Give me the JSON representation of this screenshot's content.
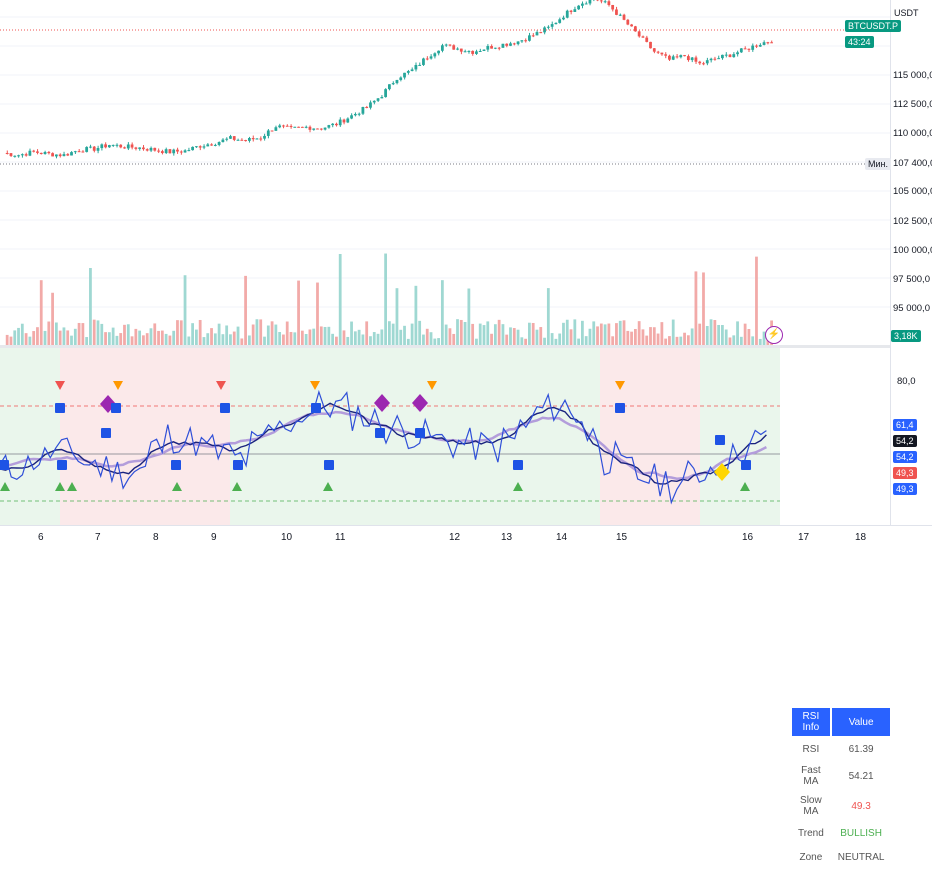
{
  "chart": {
    "currency": "USDT",
    "symbol_tag": "BTCUSDT.P",
    "countdown": "43:24",
    "volume_tag": "3,18K",
    "low_tag": "Мин.",
    "low_value": "107 400,0",
    "price_ticks": [
      "115 000,0",
      "112 500,0",
      "110 000,0",
      "107 400,0",
      "105 000,0",
      "102 500,0",
      "100 000,0",
      "97 500,0",
      "95 000,0"
    ],
    "rsi_ticks": [
      "80,0"
    ],
    "rsi_tags": [
      "61,4",
      "54,2",
      "54,2",
      "49,3",
      "49,3"
    ],
    "time_ticks": [
      "6",
      "7",
      "8",
      "9",
      "10",
      "11",
      "12",
      "13",
      "14",
      "15",
      "16",
      "17",
      "18"
    ]
  },
  "rsi_table": {
    "header_label": "RSI Info",
    "header_value": "Value",
    "rows": [
      {
        "label": "RSI",
        "value": "61.39"
      },
      {
        "label": "Fast MA",
        "value": "54.21"
      },
      {
        "label": "Slow MA",
        "value": "49.3"
      },
      {
        "label": "Trend",
        "value": "BULLISH"
      },
      {
        "label": "Zone",
        "value": "NEUTRAL"
      }
    ]
  },
  "colors": {
    "up": "#26a69a",
    "down": "#ef5350",
    "rsi_line": "#2f4fd8",
    "fast_ma": "#1a237e",
    "slow_ma": "#b39ddb",
    "bull_green": "#4caf50",
    "slow_red": "#ef5350",
    "marker_purple": "#9c27b0",
    "marker_yellow": "#ffd600",
    "marker_orange": "#ff9800"
  },
  "chart_data": {
    "type": "candlestick",
    "price_axis": {
      "min": 93000,
      "max": 123000
    },
    "close_prices": [
      108200,
      108000,
      108300,
      108100,
      108000,
      108500,
      108600,
      109000,
      108800,
      108700,
      108500,
      108300,
      108400,
      108900,
      109200,
      109600,
      109400,
      109700,
      110800,
      110500,
      110700,
      110600,
      111000,
      111800,
      112600,
      113800,
      115500,
      116200,
      117500,
      118600,
      118300,
      118000,
      118400,
      118700,
      119000,
      119600,
      120300,
      121500,
      122600,
      123200,
      122500,
      121000,
      119500,
      118000,
      117200,
      117600,
      116800,
      117300,
      117700,
      118200,
      118800,
      119200
    ],
    "rsi": [
      45,
      47,
      50,
      53,
      52,
      48,
      46,
      44,
      45,
      55,
      60,
      58,
      55,
      52,
      50,
      56,
      63,
      67,
      71,
      74,
      73,
      70,
      67,
      64,
      62,
      60,
      58,
      57,
      56,
      55,
      58,
      65,
      72,
      74,
      70,
      60,
      50,
      45,
      42,
      40,
      38,
      42,
      46,
      50,
      55,
      58,
      61
    ],
    "rsi_axis": {
      "min": 20,
      "max": 100
    }
  }
}
